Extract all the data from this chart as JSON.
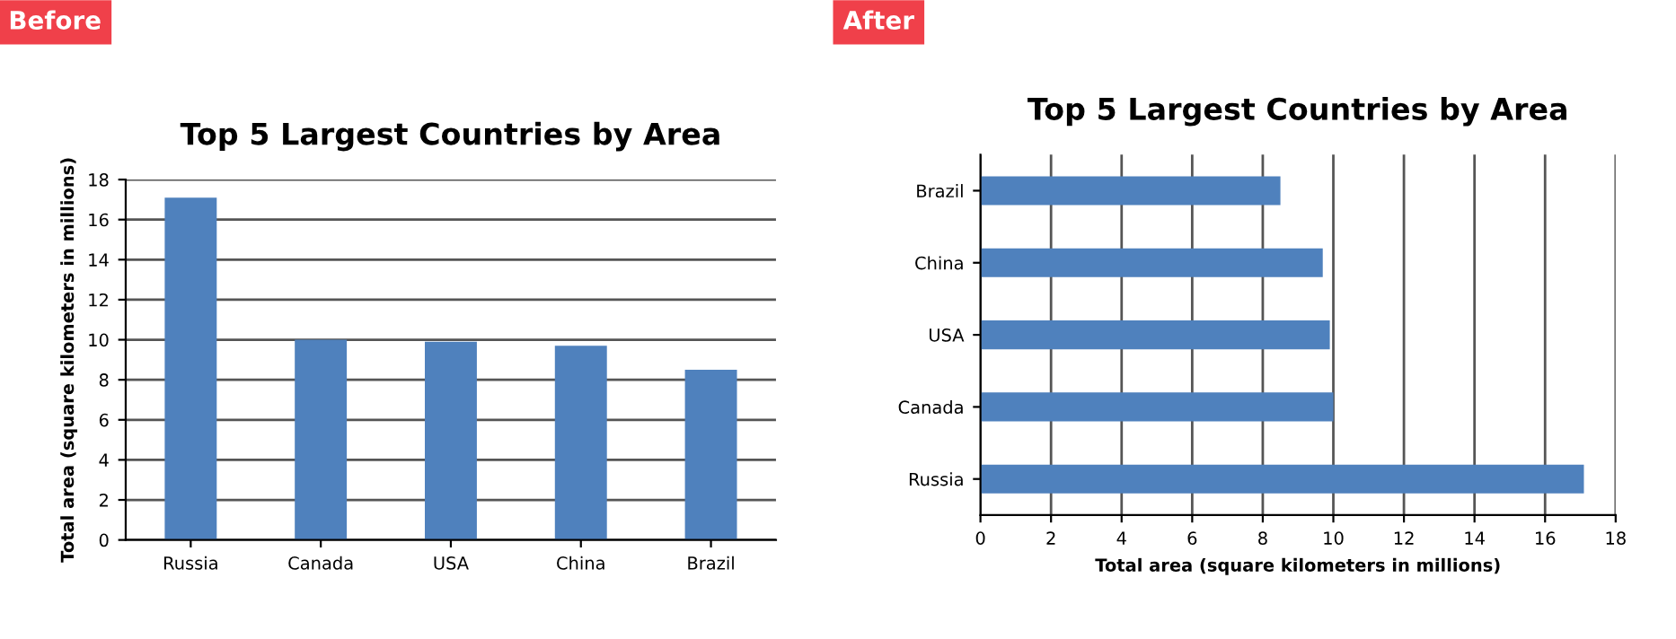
{
  "chart_data": [
    {
      "type": "bar",
      "title": "Top 5 Largest Countries by Area",
      "ylabel": "Total area (square kilometers in millions)",
      "categories": [
        "Russia",
        "Canada",
        "USA",
        "China",
        "Brazil"
      ],
      "values": [
        17.1,
        10.0,
        9.9,
        9.7,
        8.5
      ],
      "color": "#4f81bd",
      "ylim": [
        0,
        18
      ],
      "yticks": [
        0,
        2,
        4,
        6,
        8,
        10,
        12,
        14,
        16,
        18
      ],
      "grid": "y",
      "annotations": [
        "Before"
      ]
    },
    {
      "type": "bar",
      "orientation": "horizontal",
      "title": "Top 5 Largest Countries by Area",
      "xlabel": "Total area (square kilometers in millions)",
      "categories": [
        "Brazil",
        "China",
        "USA",
        "Canada",
        "Russia"
      ],
      "values": [
        8.5,
        9.7,
        9.9,
        10.0,
        17.1
      ],
      "color": "#4f81bd",
      "xlim": [
        0,
        18
      ],
      "xticks": [
        0,
        2,
        4,
        6,
        8,
        10,
        12,
        14,
        16,
        18
      ],
      "grid": "x",
      "annotations": [
        "After"
      ]
    }
  ]
}
